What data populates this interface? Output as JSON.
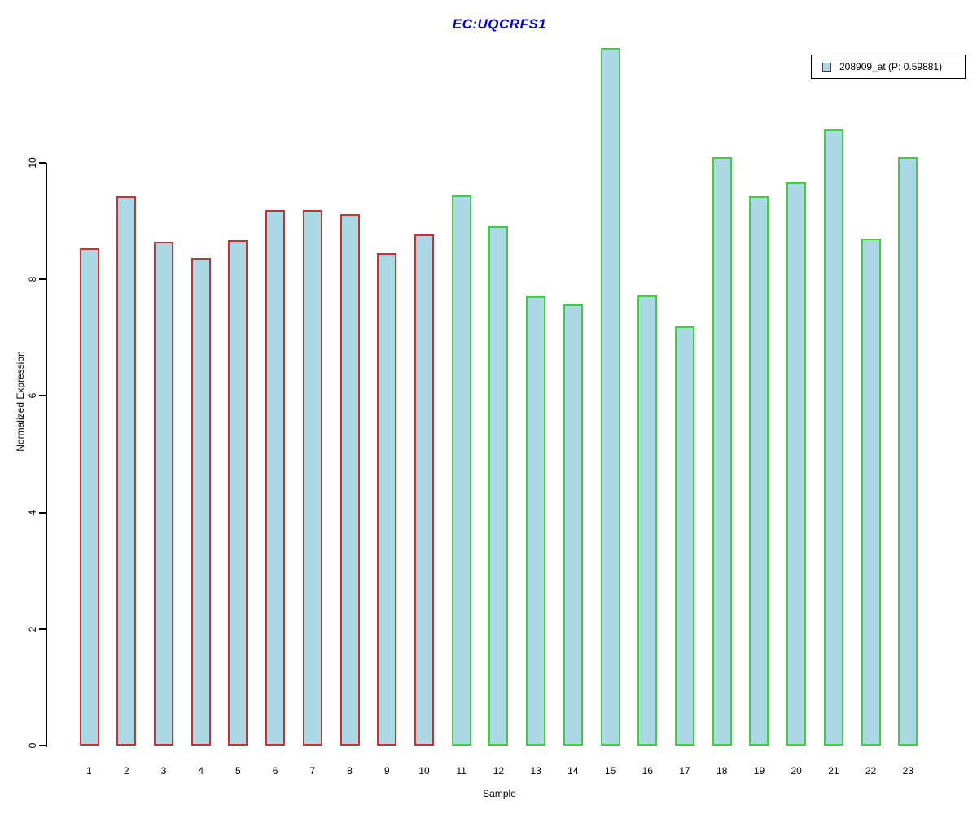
{
  "title": "EC:UQCRFS1",
  "title_color": "#0000CC",
  "legend": {
    "label": "208909_at (P: 0.59881)",
    "swatch_color": "#ADD8E6",
    "swatch_border_color": "#404040"
  },
  "axes": {
    "y_label": "Normalized Expression",
    "x_label": "Sample"
  },
  "colors": {
    "bar_fill": "#ADD8E6",
    "group1_border": "#C83232",
    "group2_border": "#3FD03F",
    "axis": "#000000"
  },
  "chart_data": {
    "type": "bar",
    "title": "EC:UQCRFS1",
    "xlabel": "Sample",
    "ylabel": "Normalized Expression",
    "categories": [
      "1",
      "2",
      "3",
      "4",
      "5",
      "6",
      "7",
      "8",
      "9",
      "10",
      "11",
      "12",
      "13",
      "14",
      "15",
      "16",
      "17",
      "18",
      "19",
      "20",
      "21",
      "22",
      "23"
    ],
    "series": [
      {
        "name": "208909_at (P: 0.59881)",
        "values": [
          8.53,
          9.43,
          8.65,
          8.37,
          8.67,
          9.19,
          9.19,
          9.12,
          8.45,
          8.77,
          9.44,
          8.91,
          7.71,
          7.57,
          11.97,
          7.72,
          7.19,
          10.1,
          9.43,
          9.66,
          10.57,
          8.7,
          10.1
        ]
      }
    ],
    "values": [
      8.53,
      9.43,
      8.65,
      8.37,
      8.67,
      9.19,
      9.19,
      9.12,
      8.45,
      8.77,
      9.44,
      8.91,
      7.71,
      7.57,
      11.97,
      7.72,
      7.19,
      10.1,
      9.43,
      9.66,
      10.57,
      8.7,
      10.1
    ],
    "bar_groups": [
      {
        "label": "samples 1-10",
        "from_index": 0,
        "to_index": 9,
        "border_color": "#C83232"
      },
      {
        "label": "samples 11-23",
        "from_index": 10,
        "to_index": 22,
        "border_color": "#3FD03F"
      }
    ],
    "bar_fill": "#ADD8E6",
    "yticks": [
      0,
      2,
      4,
      6,
      8,
      10
    ],
    "ylim": [
      0,
      12.05
    ],
    "grid": false,
    "legend_position": "top-right"
  }
}
